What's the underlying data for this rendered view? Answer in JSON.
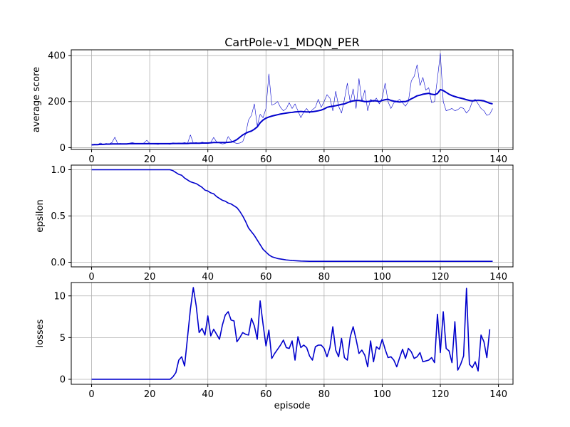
{
  "figure": {
    "title": "CartPole-v1_MDQN_PER"
  },
  "chart_data": [
    {
      "type": "line",
      "title": "CartPole-v1_MDQN_PER",
      "xlabel": "",
      "ylabel": "average score",
      "xlim": [
        -7,
        145
      ],
      "ylim": [
        -8,
        425
      ],
      "xticks": [
        0,
        20,
        40,
        60,
        80,
        100,
        120,
        140
      ],
      "yticks": [
        0,
        200,
        400
      ],
      "xtick_labels": [
        "0",
        "20",
        "40",
        "60",
        "80",
        "100",
        "120",
        "140"
      ],
      "ytick_labels": [
        "0",
        "200",
        "400"
      ],
      "grid": true,
      "color": "#0000cc",
      "series": [
        {
          "style": "thin",
          "x_start": 0,
          "values": [
            12,
            15,
            13,
            20,
            14,
            18,
            16,
            22,
            45,
            17,
            18,
            15,
            16,
            19,
            22,
            18,
            17,
            16,
            20,
            32,
            18,
            16,
            15,
            14,
            18,
            16,
            17,
            14,
            21,
            18,
            20,
            19,
            22,
            18,
            55,
            20,
            22,
            17,
            24,
            21,
            18,
            23,
            44,
            25,
            20,
            16,
            18,
            48,
            30,
            22,
            18,
            20,
            26,
            60,
            120,
            140,
            190,
            95,
            145,
            130,
            170,
            320,
            185,
            190,
            200,
            175,
            160,
            170,
            195,
            170,
            190,
            160,
            130,
            155,
            170,
            150,
            165,
            175,
            210,
            175,
            200,
            230,
            215,
            160,
            245,
            180,
            150,
            210,
            280,
            195,
            255,
            170,
            300,
            200,
            250,
            160,
            210,
            200,
            215,
            190,
            215,
            280,
            200,
            170,
            195,
            200,
            210,
            195,
            180,
            200,
            290,
            310,
            360,
            270,
            305,
            250,
            260,
            195,
            200,
            300,
            410,
            200,
            160,
            165,
            170,
            160,
            165,
            175,
            170,
            150,
            165,
            200,
            210,
            190,
            170,
            160,
            140,
            145,
            170
          ],
          "x_note": "episodes 0-138"
        },
        {
          "style": "thick",
          "x_start": 0,
          "values": [
            12,
            13,
            13,
            14,
            14,
            15,
            15,
            16,
            16,
            16,
            16,
            16,
            16,
            17,
            17,
            17,
            17,
            17,
            17,
            17,
            17,
            17,
            17,
            17,
            17,
            17,
            17,
            17,
            18,
            18,
            18,
            18,
            18,
            18,
            19,
            19,
            19,
            19,
            20,
            20,
            20,
            21,
            22,
            22,
            22,
            22,
            22,
            23,
            24,
            28,
            35,
            45,
            55,
            62,
            68,
            72,
            80,
            90,
            108,
            120,
            128,
            133,
            137,
            140,
            143,
            146,
            148,
            150,
            152,
            153,
            155,
            156,
            157,
            156,
            155,
            155,
            156,
            158,
            160,
            163,
            168,
            175,
            178,
            180,
            182,
            185,
            188,
            190,
            195,
            200,
            203,
            205,
            205,
            203,
            200,
            200,
            202,
            204,
            203,
            200,
            205,
            208,
            210,
            205,
            202,
            200,
            198,
            200,
            200,
            205,
            212,
            218,
            225,
            228,
            232,
            234,
            236,
            232,
            230,
            235,
            252,
            248,
            240,
            232,
            226,
            222,
            218,
            215,
            212,
            208,
            205,
            203,
            205,
            206,
            205,
            203,
            198,
            193,
            190
          ]
        }
      ]
    },
    {
      "type": "line",
      "xlabel": "",
      "ylabel": "epsilon",
      "xlim": [
        -7,
        145
      ],
      "ylim": [
        -0.05,
        1.05
      ],
      "xticks": [
        0,
        20,
        40,
        60,
        80,
        100,
        120,
        140
      ],
      "yticks": [
        0.0,
        0.5,
        1.0
      ],
      "xtick_labels": [
        "0",
        "20",
        "40",
        "60",
        "80",
        "100",
        "120",
        "140"
      ],
      "ytick_labels": [
        "0.0",
        "0.5",
        "1.0"
      ],
      "grid": true,
      "color": "#0000cc",
      "series": [
        {
          "style": "medium",
          "x_start": 0,
          "values": [
            1.0,
            1.0,
            1.0,
            1.0,
            1.0,
            1.0,
            1.0,
            1.0,
            1.0,
            1.0,
            1.0,
            1.0,
            1.0,
            1.0,
            1.0,
            1.0,
            1.0,
            1.0,
            1.0,
            1.0,
            1.0,
            1.0,
            1.0,
            1.0,
            1.0,
            1.0,
            1.0,
            1.0,
            0.99,
            0.97,
            0.95,
            0.94,
            0.91,
            0.89,
            0.87,
            0.86,
            0.85,
            0.83,
            0.81,
            0.78,
            0.77,
            0.75,
            0.74,
            0.71,
            0.69,
            0.67,
            0.66,
            0.64,
            0.63,
            0.61,
            0.59,
            0.55,
            0.5,
            0.44,
            0.37,
            0.33,
            0.29,
            0.24,
            0.19,
            0.14,
            0.11,
            0.08,
            0.06,
            0.05,
            0.04,
            0.035,
            0.03,
            0.025,
            0.022,
            0.019,
            0.017,
            0.015,
            0.013,
            0.012,
            0.011,
            0.01,
            0.01,
            0.01,
            0.01,
            0.01,
            0.01,
            0.01,
            0.01,
            0.01,
            0.01,
            0.01,
            0.01,
            0.01,
            0.01,
            0.01,
            0.01,
            0.01,
            0.01,
            0.01,
            0.01,
            0.01,
            0.01,
            0.01,
            0.01,
            0.01,
            0.01,
            0.01,
            0.01,
            0.01,
            0.01,
            0.01,
            0.01,
            0.01,
            0.01,
            0.01,
            0.01,
            0.01,
            0.01,
            0.01,
            0.01,
            0.01,
            0.01,
            0.01,
            0.01,
            0.01,
            0.01,
            0.01,
            0.01,
            0.01,
            0.01,
            0.01,
            0.01,
            0.01,
            0.01,
            0.01,
            0.01,
            0.01,
            0.01,
            0.01,
            0.01,
            0.01,
            0.01,
            0.01,
            0.01
          ]
        }
      ]
    },
    {
      "type": "line",
      "xlabel": "episode",
      "ylabel": "losses",
      "xlim": [
        -7,
        145
      ],
      "ylim": [
        -0.6,
        11.6
      ],
      "xticks": [
        0,
        20,
        40,
        60,
        80,
        100,
        120,
        140
      ],
      "yticks": [
        0,
        5,
        10
      ],
      "xtick_labels": [
        "0",
        "20",
        "40",
        "60",
        "80",
        "100",
        "120",
        "140"
      ],
      "ytick_labels": [
        "0",
        "5",
        "10"
      ],
      "grid": true,
      "color": "#0000cc",
      "series": [
        {
          "style": "medium",
          "x_start": 0,
          "values": [
            0,
            0,
            0,
            0,
            0,
            0,
            0,
            0,
            0,
            0,
            0,
            0,
            0,
            0,
            0,
            0,
            0,
            0,
            0,
            0,
            0,
            0,
            0,
            0,
            0,
            0,
            0,
            0,
            0.3,
            0.8,
            2.3,
            2.7,
            1.6,
            5.0,
            8.4,
            11.0,
            8.8,
            5.6,
            6.1,
            5.3,
            7.6,
            5.2,
            6.0,
            5.4,
            4.8,
            6.5,
            7.7,
            8.1,
            7.1,
            7.0,
            4.5,
            5.0,
            5.6,
            5.4,
            5.3,
            7.3,
            6.4,
            4.8,
            9.4,
            6.6,
            4.0,
            5.9,
            2.5,
            3.1,
            3.6,
            4.1,
            4.7,
            3.8,
            3.7,
            4.6,
            2.3,
            5.1,
            3.8,
            4.1,
            3.8,
            2.8,
            2.3,
            3.9,
            4.1,
            4.1,
            3.7,
            2.7,
            3.8,
            6.3,
            3.5,
            2.7,
            4.9,
            2.6,
            2.3,
            5.1,
            6.3,
            4.8,
            3.1,
            3.5,
            2.9,
            1.5,
            4.6,
            2.1,
            3.9,
            3.6,
            4.8,
            3.6,
            2.6,
            2.7,
            2.3,
            1.5,
            2.6,
            3.6,
            2.5,
            3.7,
            3.3,
            2.5,
            2.7,
            3.2,
            2.1,
            2.2,
            2.3,
            2.6,
            2.0,
            7.8,
            3.2,
            8.1,
            3.7,
            3.4,
            2.0,
            6.9,
            1.1,
            1.8,
            2.8,
            10.9,
            1.8,
            1.4,
            2.1,
            1.0,
            5.3,
            4.5,
            2.6,
            6.0
          ]
        }
      ]
    }
  ]
}
